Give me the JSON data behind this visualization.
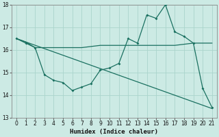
{
  "xlabel": "Humidex (Indice chaleur)",
  "background_color": "#cceae4",
  "grid_color": "#aad4cc",
  "line_color": "#1a7060",
  "xlim": [
    -0.5,
    21.5
  ],
  "ylim": [
    13,
    18
  ],
  "yticks": [
    13,
    14,
    15,
    16,
    17,
    18
  ],
  "xticks": [
    0,
    1,
    2,
    3,
    4,
    5,
    6,
    7,
    8,
    9,
    10,
    11,
    12,
    13,
    14,
    15,
    16,
    17,
    18,
    19,
    20,
    21
  ],
  "flat_line_x": [
    0,
    1,
    2,
    3,
    4,
    5,
    6,
    7,
    8,
    9,
    10,
    11,
    12,
    13,
    14,
    15,
    16,
    17,
    18,
    19,
    20,
    21
  ],
  "flat_line_y": [
    16.5,
    16.35,
    16.1,
    16.1,
    16.1,
    16.1,
    16.1,
    16.1,
    16.15,
    16.2,
    16.2,
    16.2,
    16.2,
    16.2,
    16.2,
    16.2,
    16.2,
    16.2,
    16.25,
    16.3,
    16.3,
    16.3
  ],
  "diag_line_x": [
    0,
    21
  ],
  "diag_line_y": [
    16.5,
    13.4
  ],
  "wavy_x": [
    0,
    1,
    2,
    3,
    4,
    5,
    6,
    7,
    8,
    9,
    10,
    11,
    12,
    13,
    14,
    15,
    16,
    17,
    18,
    19,
    20,
    21
  ],
  "wavy_y": [
    16.5,
    16.3,
    16.1,
    14.9,
    14.65,
    14.55,
    14.2,
    14.35,
    14.5,
    15.1,
    15.2,
    15.4,
    16.5,
    16.3,
    17.55,
    17.4,
    18.0,
    16.8,
    16.6,
    16.3,
    14.3,
    13.45
  ]
}
